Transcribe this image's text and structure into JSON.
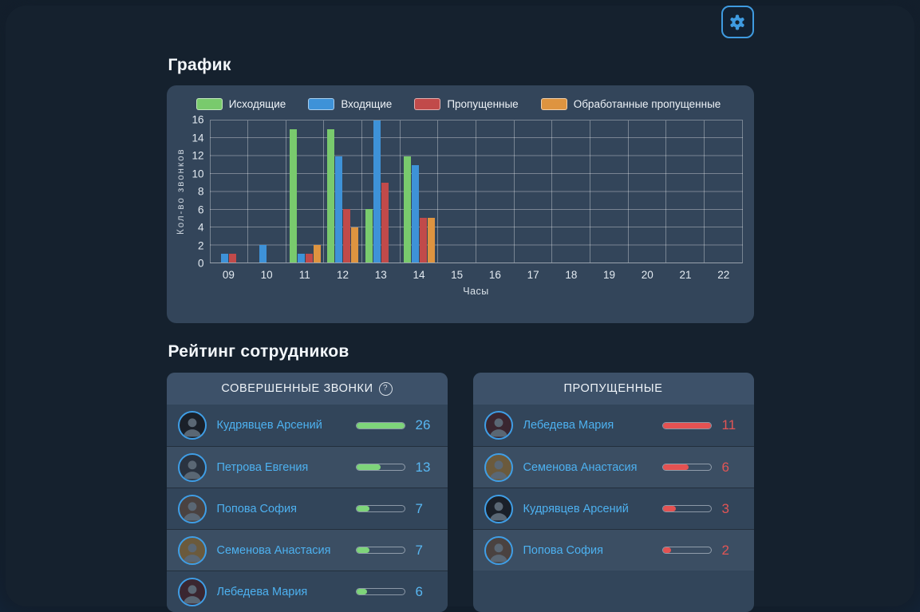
{
  "app": {
    "settings_icon": "gear",
    "accent_blue": "#3f9be0"
  },
  "sections": {
    "chart_title": "График",
    "rating_title": "Рейтинг сотрудников"
  },
  "chart_data": {
    "type": "bar",
    "categories": [
      "09",
      "10",
      "11",
      "12",
      "13",
      "14",
      "15",
      "16",
      "17",
      "18",
      "19",
      "20",
      "21",
      "22"
    ],
    "series": [
      {
        "name": "Исходящие",
        "key": "outgoing",
        "color": "#79ca6d",
        "values": [
          0,
          0,
          15,
          15,
          6,
          12,
          0,
          0,
          0,
          0,
          0,
          0,
          0,
          0
        ]
      },
      {
        "name": "Входящие",
        "key": "incoming",
        "color": "#3e92d8",
        "values": [
          1,
          2,
          1,
          12,
          16,
          11,
          0,
          0,
          0,
          0,
          0,
          0,
          0,
          0
        ]
      },
      {
        "name": "Пропущенные",
        "key": "missed",
        "color": "#c14a4a",
        "values": [
          1,
          0,
          1,
          6,
          9,
          5,
          0,
          0,
          0,
          0,
          0,
          0,
          0,
          0
        ]
      },
      {
        "name": "Обработанные пропущенные",
        "key": "handled-missed",
        "color": "#de9440",
        "values": [
          0,
          0,
          2,
          4,
          0,
          5,
          0,
          0,
          0,
          0,
          0,
          0,
          0,
          0
        ]
      }
    ],
    "xlabel": "Часы",
    "ylabel": "Кол-во звонков",
    "ylim": [
      0,
      16
    ],
    "ytick_step": 2,
    "grid": true,
    "legend_position": "top"
  },
  "rating": {
    "completed": {
      "title": "СОВЕРШЕННЫЕ ЗВОНКИ",
      "has_help_icon": true,
      "bar_color": "#7ed47a",
      "value_color": "#58b7f2",
      "max_value": 26,
      "rows": [
        {
          "name": "Кудрявцев Арсений",
          "value": 26,
          "avatar_color": "#1a2029"
        },
        {
          "name": "Петрова Евгения",
          "value": 13,
          "avatar_color": "#2a3340"
        },
        {
          "name": "Попова София",
          "value": 7,
          "avatar_color": "#4a4240"
        },
        {
          "name": "Семенова Анастасия",
          "value": 7,
          "avatar_color": "#6b5a3c"
        },
        {
          "name": "Лебедева Мария",
          "value": 6,
          "avatar_color": "#3a2630"
        }
      ]
    },
    "missed": {
      "title": "ПРОПУЩЕННЫЕ",
      "has_help_icon": false,
      "bar_color": "#e45252",
      "value_color": "#e25555",
      "max_value": 11,
      "rows": [
        {
          "name": "Лебедева Мария",
          "value": 11,
          "avatar_color": "#3a2630"
        },
        {
          "name": "Семенова Анастасия",
          "value": 6,
          "avatar_color": "#6b5a3c"
        },
        {
          "name": "Кудрявцев Арсений",
          "value": 3,
          "avatar_color": "#1a2029"
        },
        {
          "name": "Попова София",
          "value": 2,
          "avatar_color": "#4a4240"
        }
      ]
    }
  }
}
